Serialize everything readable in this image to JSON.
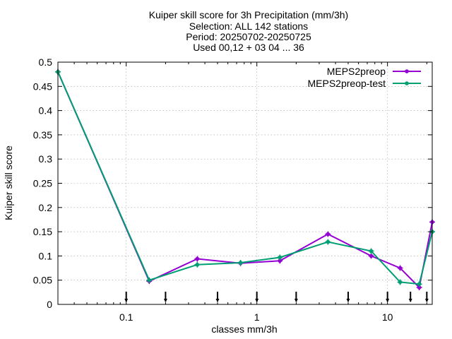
{
  "chart_data": {
    "type": "line",
    "title_lines": [
      "Kuiper skill score  for 3h Precipitation (mm/3h)",
      "Selection: ALL    142 stations",
      "Period: 20250702-20250725",
      "Used 00,12 + 03 04 ... 36"
    ],
    "xlabel": "classes mm/3h",
    "ylabel": "Kuiper skill score",
    "xscale": "log",
    "xlim": [
      0.03,
      22
    ],
    "ylim": [
      0,
      0.5
    ],
    "x_ticks": [
      0.1,
      1,
      10
    ],
    "x_tick_labels": [
      "0.1",
      "1",
      "10"
    ],
    "y_ticks": [
      0,
      0.05,
      0.1,
      0.15,
      0.2,
      0.25,
      0.3,
      0.35,
      0.4,
      0.45,
      0.5
    ],
    "y_tick_labels": [
      "0",
      "0.05",
      "0.1",
      "0.15",
      "0.2",
      "0.25",
      "0.3",
      "0.35",
      "0.4",
      "0.45",
      "0.5"
    ],
    "grid": true,
    "legend_position": "top-right",
    "threshold_markers": [
      0.1,
      0.2,
      0.5,
      1,
      2,
      5,
      10,
      15,
      20
    ],
    "series": [
      {
        "name": "MEPS2preop",
        "color": "#9400d3",
        "x": [
          0.03,
          0.15,
          0.35,
          0.75,
          1.5,
          3.5,
          7.5,
          12.5,
          17.5,
          22
        ],
        "y": [
          0.48,
          0.048,
          0.094,
          0.085,
          0.09,
          0.145,
          0.1,
          0.075,
          0.035,
          0.17
        ]
      },
      {
        "name": "MEPS2preop-test",
        "color": "#009e73",
        "x": [
          0.03,
          0.15,
          0.35,
          0.75,
          1.5,
          3.5,
          7.5,
          12.5,
          17.5,
          22
        ],
        "y": [
          0.48,
          0.05,
          0.082,
          0.086,
          0.097,
          0.129,
          0.11,
          0.046,
          0.042,
          0.15
        ]
      }
    ]
  }
}
